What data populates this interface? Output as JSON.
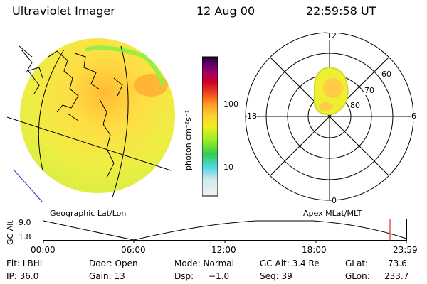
{
  "header": {
    "title": "Ultraviolet Imager",
    "date": "12 Aug 00",
    "time": "22:59:58 UT"
  },
  "colorbar": {
    "label": "photon cm⁻²s⁻¹",
    "scale": "log",
    "range": [
      2,
      1000
    ],
    "ticks": [
      "100",
      "10"
    ],
    "colors": [
      "#eef4f4",
      "#cfe8ea",
      "#55d8e8",
      "#33cc55",
      "#99ee22",
      "#eeee22",
      "#ffcc33",
      "#ff9922",
      "#ee4422",
      "#cc0022",
      "#aa0066",
      "#660066",
      "#220033"
    ]
  },
  "left_panel": {
    "caption": "Geographic Lat/Lon"
  },
  "right_panel": {
    "caption": "Apex MLat/MLT",
    "mlt_labels": {
      "top": "12",
      "right": "6",
      "left": "18",
      "bottom": "0"
    },
    "mlat_labels": [
      "60",
      "70",
      "80"
    ]
  },
  "timeline": {
    "ylabel": "GC Alt",
    "y_ticks": [
      "9.0",
      "1.8"
    ],
    "x_ticks": [
      "00:00",
      "06:00",
      "12:00",
      "18:00",
      "23:59"
    ],
    "current_time_marker": "22:59:58"
  },
  "info": {
    "filter": "Flt: LBHL",
    "ip": "IP: 36.0",
    "door": "Door: Open",
    "gain": "Gain: 13",
    "mode": "Mode: Normal",
    "dsp": "Dsp:",
    "dsp_value": "−1.0",
    "gc_alt": "GC Alt: 3.4 Re",
    "seq": "Seq: 39",
    "glat": "GLat:",
    "glat_value": "73.6",
    "glon": "GLon:",
    "glon_value": "233.7"
  }
}
